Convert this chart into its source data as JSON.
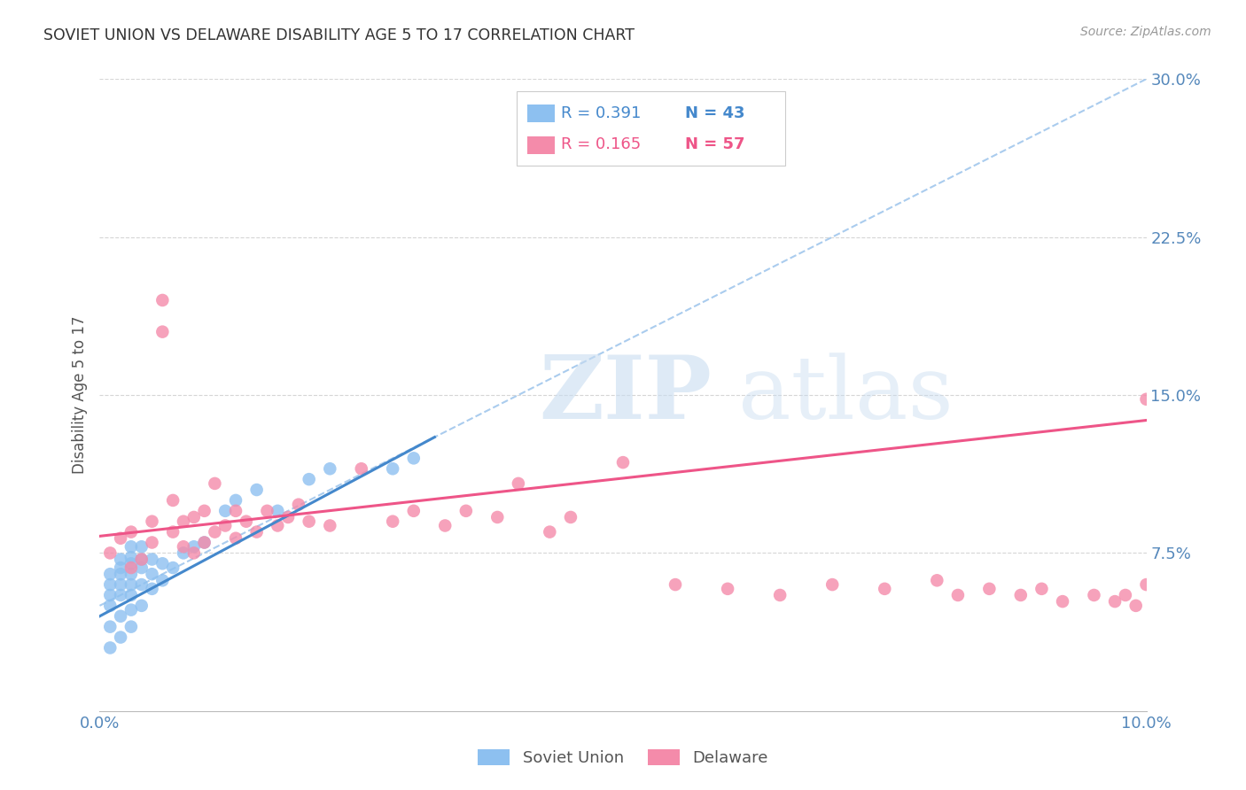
{
  "title": "SOVIET UNION VS DELAWARE DISABILITY AGE 5 TO 17 CORRELATION CHART",
  "source": "Source: ZipAtlas.com",
  "ylabel": "Disability Age 5 to 17",
  "xlim": [
    0.0,
    0.1
  ],
  "ylim": [
    0.0,
    0.3
  ],
  "legend_r1": "0.391",
  "legend_n1": "43",
  "legend_r2": "0.165",
  "legend_n2": "57",
  "soviet_color": "#8DC0F0",
  "delaware_color": "#F48BAA",
  "trend_soviet_color": "#4488CC",
  "trend_delaware_color": "#EE5588",
  "dashed_line_color": "#AACCEE",
  "grid_color": "#CCCCCC",
  "axis_label_color": "#5588BB",
  "title_color": "#333333",
  "watermark_zip": "ZIP",
  "watermark_atlas": "atlas",
  "soviet_scatter_x": [
    0.001,
    0.001,
    0.001,
    0.001,
    0.001,
    0.001,
    0.002,
    0.002,
    0.002,
    0.002,
    0.002,
    0.002,
    0.002,
    0.003,
    0.003,
    0.003,
    0.003,
    0.003,
    0.003,
    0.003,
    0.003,
    0.004,
    0.004,
    0.004,
    0.004,
    0.004,
    0.005,
    0.005,
    0.005,
    0.006,
    0.006,
    0.007,
    0.008,
    0.009,
    0.01,
    0.012,
    0.013,
    0.015,
    0.017,
    0.02,
    0.022,
    0.028,
    0.03
  ],
  "soviet_scatter_y": [
    0.03,
    0.04,
    0.05,
    0.055,
    0.06,
    0.065,
    0.035,
    0.045,
    0.055,
    0.06,
    0.065,
    0.068,
    0.072,
    0.04,
    0.048,
    0.055,
    0.06,
    0.065,
    0.07,
    0.073,
    0.078,
    0.05,
    0.06,
    0.068,
    0.072,
    0.078,
    0.058,
    0.065,
    0.072,
    0.062,
    0.07,
    0.068,
    0.075,
    0.078,
    0.08,
    0.095,
    0.1,
    0.105,
    0.095,
    0.11,
    0.115,
    0.115,
    0.12
  ],
  "delaware_scatter_x": [
    0.001,
    0.002,
    0.003,
    0.003,
    0.004,
    0.005,
    0.005,
    0.006,
    0.006,
    0.007,
    0.007,
    0.008,
    0.008,
    0.009,
    0.009,
    0.01,
    0.01,
    0.011,
    0.011,
    0.012,
    0.013,
    0.013,
    0.014,
    0.015,
    0.016,
    0.017,
    0.018,
    0.019,
    0.02,
    0.022,
    0.025,
    0.028,
    0.03,
    0.033,
    0.035,
    0.038,
    0.04,
    0.043,
    0.045,
    0.05,
    0.055,
    0.06,
    0.065,
    0.07,
    0.075,
    0.08,
    0.082,
    0.085,
    0.088,
    0.09,
    0.092,
    0.095,
    0.097,
    0.098,
    0.099,
    0.1,
    0.1
  ],
  "delaware_scatter_y": [
    0.075,
    0.082,
    0.068,
    0.085,
    0.072,
    0.08,
    0.09,
    0.18,
    0.195,
    0.085,
    0.1,
    0.078,
    0.09,
    0.075,
    0.092,
    0.08,
    0.095,
    0.085,
    0.108,
    0.088,
    0.082,
    0.095,
    0.09,
    0.085,
    0.095,
    0.088,
    0.092,
    0.098,
    0.09,
    0.088,
    0.115,
    0.09,
    0.095,
    0.088,
    0.095,
    0.092,
    0.108,
    0.085,
    0.092,
    0.118,
    0.06,
    0.058,
    0.055,
    0.06,
    0.058,
    0.062,
    0.055,
    0.058,
    0.055,
    0.058,
    0.052,
    0.055,
    0.052,
    0.055,
    0.05,
    0.06,
    0.148
  ],
  "soviet_trend_x": [
    0.0,
    0.032
  ],
  "soviet_trend_y": [
    0.045,
    0.13
  ],
  "delaware_trend_x": [
    0.0,
    0.1
  ],
  "delaware_trend_y": [
    0.083,
    0.138
  ],
  "dashed_line_x": [
    0.0,
    0.1
  ],
  "dashed_line_y": [
    0.05,
    0.3
  ]
}
